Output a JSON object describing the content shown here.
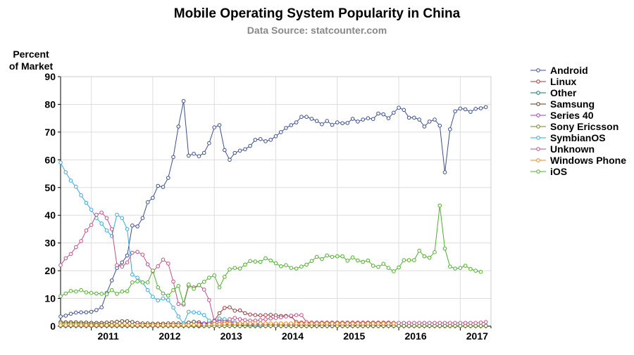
{
  "chart_data": {
    "type": "line",
    "title": "Mobile Operating System Popularity in China",
    "subtitle": "Data Source: statcounter.com",
    "ylabel_line1": "Percent",
    "ylabel_line2": "of Market",
    "xlabel": "",
    "ylim": [
      0,
      90
    ],
    "yticks": [
      0,
      10,
      20,
      30,
      40,
      50,
      60,
      70,
      80,
      90
    ],
    "xlim": [
      "2010-07",
      "2017-07"
    ],
    "xticks": [
      {
        "label": "2011",
        "date": "2011-01"
      },
      {
        "label": "2012",
        "date": "2012-01"
      },
      {
        "label": "2013",
        "date": "2013-01"
      },
      {
        "label": "2014",
        "date": "2014-01"
      },
      {
        "label": "2015",
        "date": "2015-01"
      },
      {
        "label": "2016",
        "date": "2016-01"
      },
      {
        "label": "2017",
        "date": "2017-01"
      }
    ],
    "grid": true,
    "legend_position": "right",
    "series": [
      {
        "name": "Android",
        "color": "#3b4f8c",
        "start": "2010-07",
        "values": [
          3.5,
          3.8,
          4.5,
          4.9,
          5.0,
          5.0,
          5.2,
          5.8,
          6.8,
          12,
          16.5,
          21,
          23,
          25.5,
          36.3,
          36,
          39,
          44.7,
          46.3,
          50.6,
          50.2,
          53.5,
          61,
          72,
          81.2,
          61.5,
          62.2,
          61.3,
          62.5,
          66,
          71.7,
          72.5,
          63.5,
          60,
          62.5,
          63.3,
          63.8,
          65,
          67.2,
          67.5,
          66.7,
          67.2,
          68.5,
          70,
          71.5,
          72.5,
          73.5,
          75.5,
          75.5,
          74.8,
          74,
          72.8,
          74,
          72.6,
          73.5,
          73.2,
          73.3,
          74.8,
          73.8,
          74.5,
          75,
          74.7,
          76.7,
          76.4,
          75,
          77,
          78.8,
          78,
          75.2,
          75.2,
          74.5,
          72,
          73.8,
          74.5,
          72.3,
          55.5,
          71,
          77.5,
          78.5,
          78.2,
          77.3,
          78.4,
          78.6,
          79
        ]
      },
      {
        "name": "Linux",
        "color": "#9e3a3a",
        "start": "2012-10",
        "values": [
          0,
          0.5,
          1,
          2,
          4.7,
          6.6,
          6.8,
          5.6,
          5.7,
          4.7,
          4.2,
          4.0,
          3.9,
          4.0,
          4.1,
          3.9,
          3.7,
          3.7,
          3.6,
          1.5,
          1.3,
          1.3,
          1.3,
          1.3,
          1.3,
          1.3,
          1.3,
          1.3,
          1.3,
          1.3,
          1.3,
          1.3,
          1.3,
          1.3,
          1.3,
          1.3,
          1.3,
          1.3,
          1.2
        ]
      },
      {
        "name": "Other",
        "color": "#0f7a6c",
        "start": "2010-07",
        "constant": 0.1,
        "count": 84
      },
      {
        "name": "Samsung",
        "color": "#5a3a22",
        "start": "2010-07",
        "values": [
          1.5,
          1.4,
          1.4,
          1.4,
          1.3,
          1.3,
          1.2,
          1.2,
          1.2,
          1.3,
          1.4,
          1.6,
          1.8,
          1.8,
          1.5,
          1.2,
          1.0,
          1.0,
          0.9,
          0.9,
          0.9,
          1.0,
          1.0,
          1.0,
          1.0,
          1.3,
          1.6,
          1.4,
          1.0,
          0.9,
          0.9,
          0.8,
          0.7,
          0.6,
          0.5,
          0.4,
          0.3,
          0.3,
          0.2,
          0.2,
          0.2,
          0.2,
          0.2,
          0.2,
          0.2,
          0.1,
          0.1,
          0.1,
          0.1,
          0.1,
          0.1,
          0.1,
          0.1,
          0.1,
          0.1,
          0.1,
          0.1,
          0.1,
          0.1,
          0.1,
          0.1,
          0.1,
          0.1,
          0.1,
          0.1,
          0.1,
          0.1,
          0.1,
          0.1,
          0.1,
          0.1,
          0.1,
          0.1,
          0.1,
          0.1,
          0.1,
          0.1,
          0.1,
          0.1,
          0.1,
          0.1,
          0.1,
          0.1,
          0.1
        ]
      },
      {
        "name": "Series 40",
        "color": "#a63ac8",
        "start": "2012-10",
        "values": [
          0.8,
          1.0,
          1.5,
          2.0,
          2.2,
          2.0,
          1.5,
          1.2,
          1.0,
          0.9,
          0.8,
          0.8,
          0.7,
          0.7,
          0.6,
          0.6,
          0.5,
          0.5,
          0.5,
          0.5,
          0.4,
          0.4,
          0.4,
          0.4,
          0.4,
          0.4,
          0.3,
          0.3,
          0.3,
          0.3,
          0.3,
          0.3,
          0.3,
          0.3,
          0.3,
          0.3,
          0.3,
          0.3,
          0.3
        ]
      },
      {
        "name": "Sony Ericsson",
        "color": "#6b8a1f",
        "start": "2010-07",
        "values": [
          1.0,
          0.9,
          0.9,
          0.8,
          0.8,
          0.7,
          0.7,
          0.6,
          0.6,
          0.5,
          0.5,
          0.5,
          0.4,
          0.4,
          0.4,
          0.3,
          0.3,
          0.3,
          0.3,
          0.2,
          0.2,
          0.2,
          0.2,
          0.2,
          0.2,
          0.2,
          0.2,
          0.2,
          0.1,
          0.1,
          0.1,
          0.1,
          0.1,
          0.1,
          0.1,
          0.1,
          0.1,
          0.1,
          0.1,
          0.1,
          0.1,
          0.1,
          0.1,
          0.1,
          0.1,
          0.1,
          0.1,
          0.1,
          0.1,
          0.1,
          0.1,
          0.1,
          0.1,
          0.1,
          0.1,
          0.1,
          0.1,
          0.1,
          0.1,
          0.1,
          0.1,
          0.1,
          0.1,
          0.1,
          0.1,
          0.1,
          0.1,
          0.1,
          0.1,
          0.1,
          0.1,
          0.1,
          0.1,
          0.1,
          0.1,
          0.1,
          0.1,
          0.1,
          0.1,
          0.1,
          0.1,
          0.1,
          0.1,
          0.1
        ]
      },
      {
        "name": "SymbianOS",
        "color": "#3aa8de",
        "start": "2010-07",
        "values": [
          59,
          55.5,
          52.5,
          50.3,
          47.2,
          44.5,
          42,
          39,
          37,
          34.5,
          32.5,
          40.2,
          39,
          35,
          18.6,
          17.5,
          15.8,
          13,
          10.6,
          9.3,
          10,
          9.4,
          6.7,
          3.5,
          0.9,
          5.2,
          5.0,
          4.8,
          4.0,
          2.0,
          1.5,
          2.8,
          2.5,
          2.0,
          1.5,
          1.0,
          0.8,
          0.6,
          0.5,
          0.5
        ]
      },
      {
        "name": "Unknown",
        "color": "#c04f88",
        "start": "2010-07",
        "values": [
          22,
          24.5,
          26,
          28.5,
          30.7,
          34.5,
          36.5,
          40.2,
          41,
          39,
          35,
          22,
          21.5,
          23,
          26.5,
          26.8,
          25.8,
          22.3,
          19.8,
          21.6,
          24,
          22.6,
          16.1,
          8,
          7.8,
          14.5,
          14,
          14.8,
          13.2,
          9.4,
          1.8,
          1.5,
          1.5,
          2.5,
          3.0,
          2.5,
          2.2,
          2.0,
          2.0,
          2.2,
          2.5,
          2.8,
          3.0,
          3.2,
          3.5,
          3.8,
          4.0,
          4.0,
          1.5,
          1.3,
          1.3,
          1.2,
          1.2,
          1.2,
          1.2,
          1.2,
          1.2,
          1.2,
          1.2,
          1.2,
          1.2,
          1.2,
          1.2,
          1.2,
          1.2,
          1.2,
          1.2,
          1.2,
          1.2,
          1.2,
          1.2,
          1.2,
          1.2,
          1.2,
          1.2,
          1.2,
          1.2,
          1.2,
          1.2,
          1.2,
          1.2,
          1.2,
          1.3,
          1.5
        ]
      },
      {
        "name": "Windows Phone",
        "color": "#e8871e",
        "start": "2010-07",
        "values": [
          0.3,
          0.3,
          0.3,
          0.3,
          0.3,
          0.3,
          0.3,
          0.3,
          0.3,
          0.3,
          0.3,
          0.3,
          0.3,
          0.3,
          0.3,
          0.3,
          0.3,
          0.3,
          0.3,
          0.3,
          0.3,
          0.3,
          0.3,
          0.3,
          0.3,
          0.3,
          0.4,
          0.5,
          0.6,
          0.7,
          0.8,
          0.8,
          0.9,
          0.9,
          1.0,
          1.0,
          1.0,
          1.0,
          1.0,
          1.0,
          1.0,
          1.0,
          1.0,
          1.0,
          1.0,
          1.0,
          1.0,
          1.0,
          1.0,
          1.0,
          1.0,
          1.0,
          1.0,
          1.0,
          1.0,
          1.0,
          1.0,
          1.0,
          1.0,
          1.0,
          1.0,
          1.0,
          1.0,
          1.0,
          1.0,
          1.0
        ]
      },
      {
        "name": "iOS",
        "color": "#4fae2e",
        "start": "2010-07",
        "values": [
          10.8,
          11.8,
          12.7,
          12.5,
          13,
          12.2,
          12,
          11.8,
          11.7,
          11.5,
          13,
          11.7,
          12.5,
          12.6,
          15.8,
          16.2,
          15.8,
          15.8,
          20,
          14,
          11.8,
          11,
          13,
          14.5,
          8.2,
          15,
          13.5,
          14.8,
          16,
          17.5,
          18.3,
          14,
          17.8,
          20.5,
          21,
          20.8,
          22.2,
          23.5,
          23.3,
          23.2,
          24.5,
          23.7,
          22.7,
          21.6,
          22,
          21,
          20.8,
          21.5,
          22.2,
          23.5,
          25,
          24.2,
          25.5,
          25,
          25.2,
          25.2,
          23.6,
          24.8,
          23.7,
          23.2,
          23.7,
          21.8,
          21.4,
          22.5,
          21,
          19.8,
          21.2,
          23.8,
          23.8,
          23.8,
          27.2,
          25.2,
          24.7,
          26.7,
          43.5,
          28,
          21.5,
          20.8,
          21,
          21.8,
          20.6,
          20,
          19.6
        ]
      }
    ]
  }
}
